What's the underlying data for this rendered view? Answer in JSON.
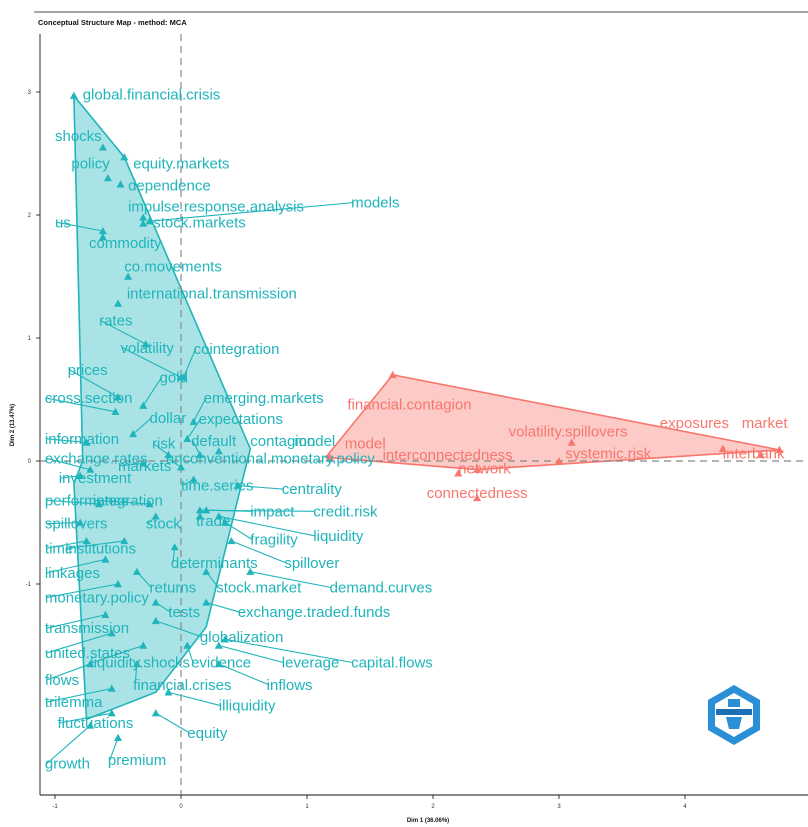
{
  "chart_data": {
    "type": "scatter",
    "title": "Conceptual Structure Map - method: MCA",
    "xlabel": "Dim 1 (36.06%)",
    "ylabel": "Dim 2 (13.47%)",
    "xlim": [
      -1.1,
      4.95
    ],
    "ylim": [
      -2.3,
      3.15
    ],
    "x_ticks": [
      -1,
      0,
      1,
      2,
      3,
      4
    ],
    "y_ticks": [
      -1,
      0,
      1,
      2,
      3
    ],
    "x_tick_labels": [
      "-1",
      "0",
      "1",
      "2",
      "3",
      "4"
    ],
    "y_tick_labels": [
      "-1",
      "0",
      "1",
      "2",
      "3"
    ],
    "grid": false,
    "reference_lines": {
      "x": 0,
      "y": 0
    },
    "clusters": [
      {
        "color": "#1fb5bb",
        "fill": "#1fb5bb",
        "hull": [
          [
            -0.85,
            2.97
          ],
          [
            -0.45,
            2.47
          ],
          [
            0.55,
            0.1
          ],
          [
            0.2,
            -1.35
          ],
          [
            -0.2,
            -1.88
          ],
          [
            -0.75,
            -2.1
          ],
          [
            -0.85,
            -0.18
          ],
          [
            -0.78,
            0.0
          ]
        ],
        "points": [
          {
            "label": "global.financial.crisis",
            "x": -0.85,
            "y": 2.97,
            "lx": -0.78,
            "ly": 2.94,
            "leader": false
          },
          {
            "label": "shocks",
            "x": -0.62,
            "y": 2.55,
            "lx": -1.0,
            "ly": 2.6,
            "leader": false
          },
          {
            "label": "equity.markets",
            "x": -0.45,
            "y": 2.47,
            "lx": -0.38,
            "ly": 2.38,
            "leader": false
          },
          {
            "label": "policy",
            "x": -0.58,
            "y": 2.3,
            "lx": -0.87,
            "ly": 2.38,
            "leader": false
          },
          {
            "label": "dependence",
            "x": -0.48,
            "y": 2.25,
            "lx": -0.42,
            "ly": 2.2,
            "leader": false
          },
          {
            "label": "impulse.response.analysis",
            "x": -0.3,
            "y": 1.93,
            "lx": -0.42,
            "ly": 2.03,
            "leader": false
          },
          {
            "label": "models",
            "x": -0.25,
            "y": 1.95,
            "lx": 1.35,
            "ly": 2.06,
            "leader": true
          },
          {
            "label": "us",
            "x": -0.62,
            "y": 1.87,
            "lx": -1.0,
            "ly": 1.9,
            "leader": true
          },
          {
            "label": "stock.markets",
            "x": -0.3,
            "y": 1.98,
            "lx": -0.22,
            "ly": 1.9,
            "leader": false
          },
          {
            "label": "commodity",
            "x": -0.62,
            "y": 1.82,
            "lx": -0.73,
            "ly": 1.73,
            "leader": false
          },
          {
            "label": "co.movements",
            "x": -0.42,
            "y": 1.5,
            "lx": -0.45,
            "ly": 1.54,
            "leader": false
          },
          {
            "label": "international.transmission",
            "x": -0.5,
            "y": 1.28,
            "lx": -0.43,
            "ly": 1.32,
            "leader": false
          },
          {
            "label": "rates",
            "x": -0.28,
            "y": 0.95,
            "lx": -0.65,
            "ly": 1.1,
            "leader": true
          },
          {
            "label": "volatility",
            "x": 0.0,
            "y": 0.68,
            "lx": -0.48,
            "ly": 0.88,
            "leader": true
          },
          {
            "label": "cointegration",
            "x": 0.02,
            "y": 0.68,
            "lx": 0.1,
            "ly": 0.87,
            "leader": true
          },
          {
            "label": "prices",
            "x": -0.5,
            "y": 0.52,
            "lx": -0.9,
            "ly": 0.7,
            "leader": true
          },
          {
            "label": "gold",
            "x": -0.3,
            "y": 0.45,
            "lx": -0.17,
            "ly": 0.64,
            "leader": true
          },
          {
            "label": "cross.section",
            "x": -0.52,
            "y": 0.4,
            "lx": -1.08,
            "ly": 0.47,
            "leader": true
          },
          {
            "label": "emerging.markets",
            "x": 0.1,
            "y": 0.32,
            "lx": 0.18,
            "ly": 0.47,
            "leader": true
          },
          {
            "label": "dollar",
            "x": -0.38,
            "y": 0.22,
            "lx": -0.25,
            "ly": 0.31,
            "leader": true
          },
          {
            "label": "expectations",
            "x": 0.05,
            "y": 0.18,
            "lx": 0.14,
            "ly": 0.3,
            "leader": true
          },
          {
            "label": "information",
            "x": -0.75,
            "y": 0.15,
            "lx": -1.08,
            "ly": 0.14,
            "leader": true
          },
          {
            "label": "risk",
            "x": -0.1,
            "y": 0.05,
            "lx": -0.23,
            "ly": 0.1,
            "leader": true
          },
          {
            "label": "default",
            "x": 0.15,
            "y": 0.05,
            "lx": 0.08,
            "ly": 0.12,
            "leader": true
          },
          {
            "label": "contagion",
            "x": 0.3,
            "y": 0.08,
            "lx": 0.55,
            "ly": 0.12,
            "leader": false
          },
          {
            "label": "model",
            "x": 1.18,
            "y": 0.02,
            "lx": 0.9,
            "ly": 0.12,
            "leader": false
          },
          {
            "label": "exchange.rates",
            "x": -0.72,
            "y": -0.07,
            "lx": -1.08,
            "ly": -0.02,
            "leader": true
          },
          {
            "label": "unconventional.monetary.policy",
            "x": 0.0,
            "y": -0.05,
            "lx": -0.12,
            "ly": -0.02,
            "leader": true
          },
          {
            "label": "markets",
            "x": -0.3,
            "y": -0.02,
            "lx": -0.5,
            "ly": -0.08,
            "leader": true
          },
          {
            "label": "investment",
            "x": -0.8,
            "y": -0.12,
            "lx": -0.97,
            "ly": -0.18,
            "leader": true
          },
          {
            "label": "time.series",
            "x": 0.1,
            "y": -0.15,
            "lx": 0.0,
            "ly": -0.24,
            "leader": true
          },
          {
            "label": "centrality",
            "x": 0.45,
            "y": -0.2,
            "lx": 0.8,
            "ly": -0.27,
            "leader": true
          },
          {
            "label": "performance",
            "x": -0.65,
            "y": -0.35,
            "lx": -1.08,
            "ly": -0.36,
            "leader": true
          },
          {
            "label": "integration",
            "x": -0.25,
            "y": -0.35,
            "lx": -0.7,
            "ly": -0.36,
            "leader": true
          },
          {
            "label": "impact",
            "x": 0.2,
            "y": -0.4,
            "lx": 0.55,
            "ly": -0.45,
            "leader": true
          },
          {
            "label": "credit.risk",
            "x": 0.15,
            "y": -0.4,
            "lx": 1.05,
            "ly": -0.45,
            "leader": true
          },
          {
            "label": "spillovers",
            "x": -0.8,
            "y": -0.5,
            "lx": -1.08,
            "ly": -0.55,
            "leader": true
          },
          {
            "label": "stock",
            "x": -0.2,
            "y": -0.45,
            "lx": -0.28,
            "ly": -0.55,
            "leader": true
          },
          {
            "label": "trade",
            "x": 0.15,
            "y": -0.45,
            "lx": 0.12,
            "ly": -0.53,
            "leader": true
          },
          {
            "label": "liquidity",
            "x": 0.3,
            "y": -0.45,
            "lx": 1.05,
            "ly": -0.65,
            "leader": true
          },
          {
            "label": "fragility",
            "x": 0.35,
            "y": -0.5,
            "lx": 0.55,
            "ly": -0.68,
            "leader": true
          },
          {
            "label": "time",
            "x": -0.75,
            "y": -0.65,
            "lx": -1.08,
            "ly": -0.75,
            "leader": true
          },
          {
            "label": "institutions",
            "x": -0.45,
            "y": -0.65,
            "lx": -0.92,
            "ly": -0.75,
            "leader": true
          },
          {
            "label": "determinants",
            "x": -0.05,
            "y": -0.7,
            "lx": -0.08,
            "ly": -0.87,
            "leader": true
          },
          {
            "label": "spillover",
            "x": 0.4,
            "y": -0.65,
            "lx": 0.82,
            "ly": -0.87,
            "leader": true
          },
          {
            "label": "linkages",
            "x": -0.6,
            "y": -0.8,
            "lx": -1.08,
            "ly": -0.95,
            "leader": true
          },
          {
            "label": "returns",
            "x": -0.35,
            "y": -0.9,
            "lx": -0.25,
            "ly": -1.07,
            "leader": true
          },
          {
            "label": "stock.market",
            "x": 0.2,
            "y": -0.9,
            "lx": 0.28,
            "ly": -1.07,
            "leader": true
          },
          {
            "label": "demand.curves",
            "x": 0.55,
            "y": -0.9,
            "lx": 1.18,
            "ly": -1.07,
            "leader": true
          },
          {
            "label": "monetary.policy",
            "x": -0.5,
            "y": -1.0,
            "lx": -1.08,
            "ly": -1.15,
            "leader": true
          },
          {
            "label": "tests",
            "x": -0.2,
            "y": -1.15,
            "lx": -0.1,
            "ly": -1.27,
            "leader": true
          },
          {
            "label": "exchange.traded.funds",
            "x": 0.2,
            "y": -1.15,
            "lx": 0.45,
            "ly": -1.27,
            "leader": true
          },
          {
            "label": "transmission",
            "x": -0.6,
            "y": -1.25,
            "lx": -1.08,
            "ly": -1.4,
            "leader": true
          },
          {
            "label": "globalization",
            "x": -0.2,
            "y": -1.3,
            "lx": 0.15,
            "ly": -1.47,
            "leader": true
          },
          {
            "label": "united.states",
            "x": -0.55,
            "y": -1.4,
            "lx": -1.08,
            "ly": -1.6,
            "leader": true
          },
          {
            "label": "liquidity.shocks",
            "x": -0.3,
            "y": -1.5,
            "lx": -0.72,
            "ly": -1.68,
            "leader": true
          },
          {
            "label": "evidence",
            "x": 0.05,
            "y": -1.5,
            "lx": 0.08,
            "ly": -1.68,
            "leader": true
          },
          {
            "label": "leverage",
            "x": 0.3,
            "y": -1.5,
            "lx": 0.8,
            "ly": -1.68,
            "leader": true
          },
          {
            "label": "capital.flows",
            "x": 0.35,
            "y": -1.45,
            "lx": 1.35,
            "ly": -1.68,
            "leader": true
          },
          {
            "label": "flows",
            "x": -0.72,
            "y": -1.65,
            "lx": -1.08,
            "ly": -1.82,
            "leader": true
          },
          {
            "label": "financial.crises",
            "x": -0.35,
            "y": -1.65,
            "lx": -0.38,
            "ly": -1.86,
            "leader": true
          },
          {
            "label": "inflows",
            "x": 0.3,
            "y": -1.65,
            "lx": 0.68,
            "ly": -1.86,
            "leader": true
          },
          {
            "label": "trilemma",
            "x": -0.55,
            "y": -1.85,
            "lx": -1.08,
            "ly": -2.0,
            "leader": true
          },
          {
            "label": "illiquidity",
            "x": -0.1,
            "y": -1.88,
            "lx": 0.3,
            "ly": -2.03,
            "leader": true
          },
          {
            "label": "fluctuations",
            "x": -0.55,
            "y": -2.05,
            "lx": -0.98,
            "ly": -2.17,
            "leader": true
          },
          {
            "label": "equity",
            "x": -0.2,
            "y": -2.05,
            "lx": 0.05,
            "ly": -2.25,
            "leader": true
          },
          {
            "label": "premium",
            "x": -0.5,
            "y": -2.25,
            "lx": -0.58,
            "ly": -2.47,
            "leader": true
          },
          {
            "label": "growth",
            "x": -0.72,
            "y": -2.15,
            "lx": -1.08,
            "ly": -2.5,
            "leader": true
          }
        ]
      },
      {
        "color": "#f8766d",
        "fill": "#f8766d",
        "hull": [
          [
            1.15,
            0.03
          ],
          [
            1.68,
            0.7
          ],
          [
            4.75,
            0.09
          ],
          [
            2.35,
            -0.07
          ]
        ],
        "points": [
          {
            "label": "financial.contagion",
            "x": 1.68,
            "y": 0.7,
            "lx": 1.32,
            "ly": 0.42,
            "leader": false
          },
          {
            "label": "model",
            "x": 1.18,
            "y": 0.03,
            "lx": 1.3,
            "ly": 0.1,
            "leader": false
          },
          {
            "label": "interconnectedness",
            "x": 2.35,
            "y": -0.07,
            "lx": 1.6,
            "ly": 0.01,
            "leader": false
          },
          {
            "label": "volatility.spillovers",
            "x": 3.1,
            "y": 0.15,
            "lx": 2.6,
            "ly": 0.2,
            "leader": false
          },
          {
            "label": "exposures",
            "x": 4.3,
            "y": 0.1,
            "lx": 3.8,
            "ly": 0.27,
            "leader": false
          },
          {
            "label": "market",
            "x": 4.75,
            "y": 0.09,
            "lx": 4.45,
            "ly": 0.27,
            "leader": false
          },
          {
            "label": "interbank",
            "x": 4.6,
            "y": 0.05,
            "lx": 4.3,
            "ly": 0.02,
            "leader": false
          },
          {
            "label": "systemic.risk",
            "x": 3.0,
            "y": 0.0,
            "lx": 3.05,
            "ly": 0.02,
            "leader": false
          },
          {
            "label": "network",
            "x": 2.2,
            "y": -0.1,
            "lx": 2.2,
            "ly": -0.1,
            "leader": false
          },
          {
            "label": "connectedness",
            "x": 2.35,
            "y": -0.3,
            "lx": 1.95,
            "ly": -0.3,
            "leader": false
          }
        ]
      }
    ]
  }
}
